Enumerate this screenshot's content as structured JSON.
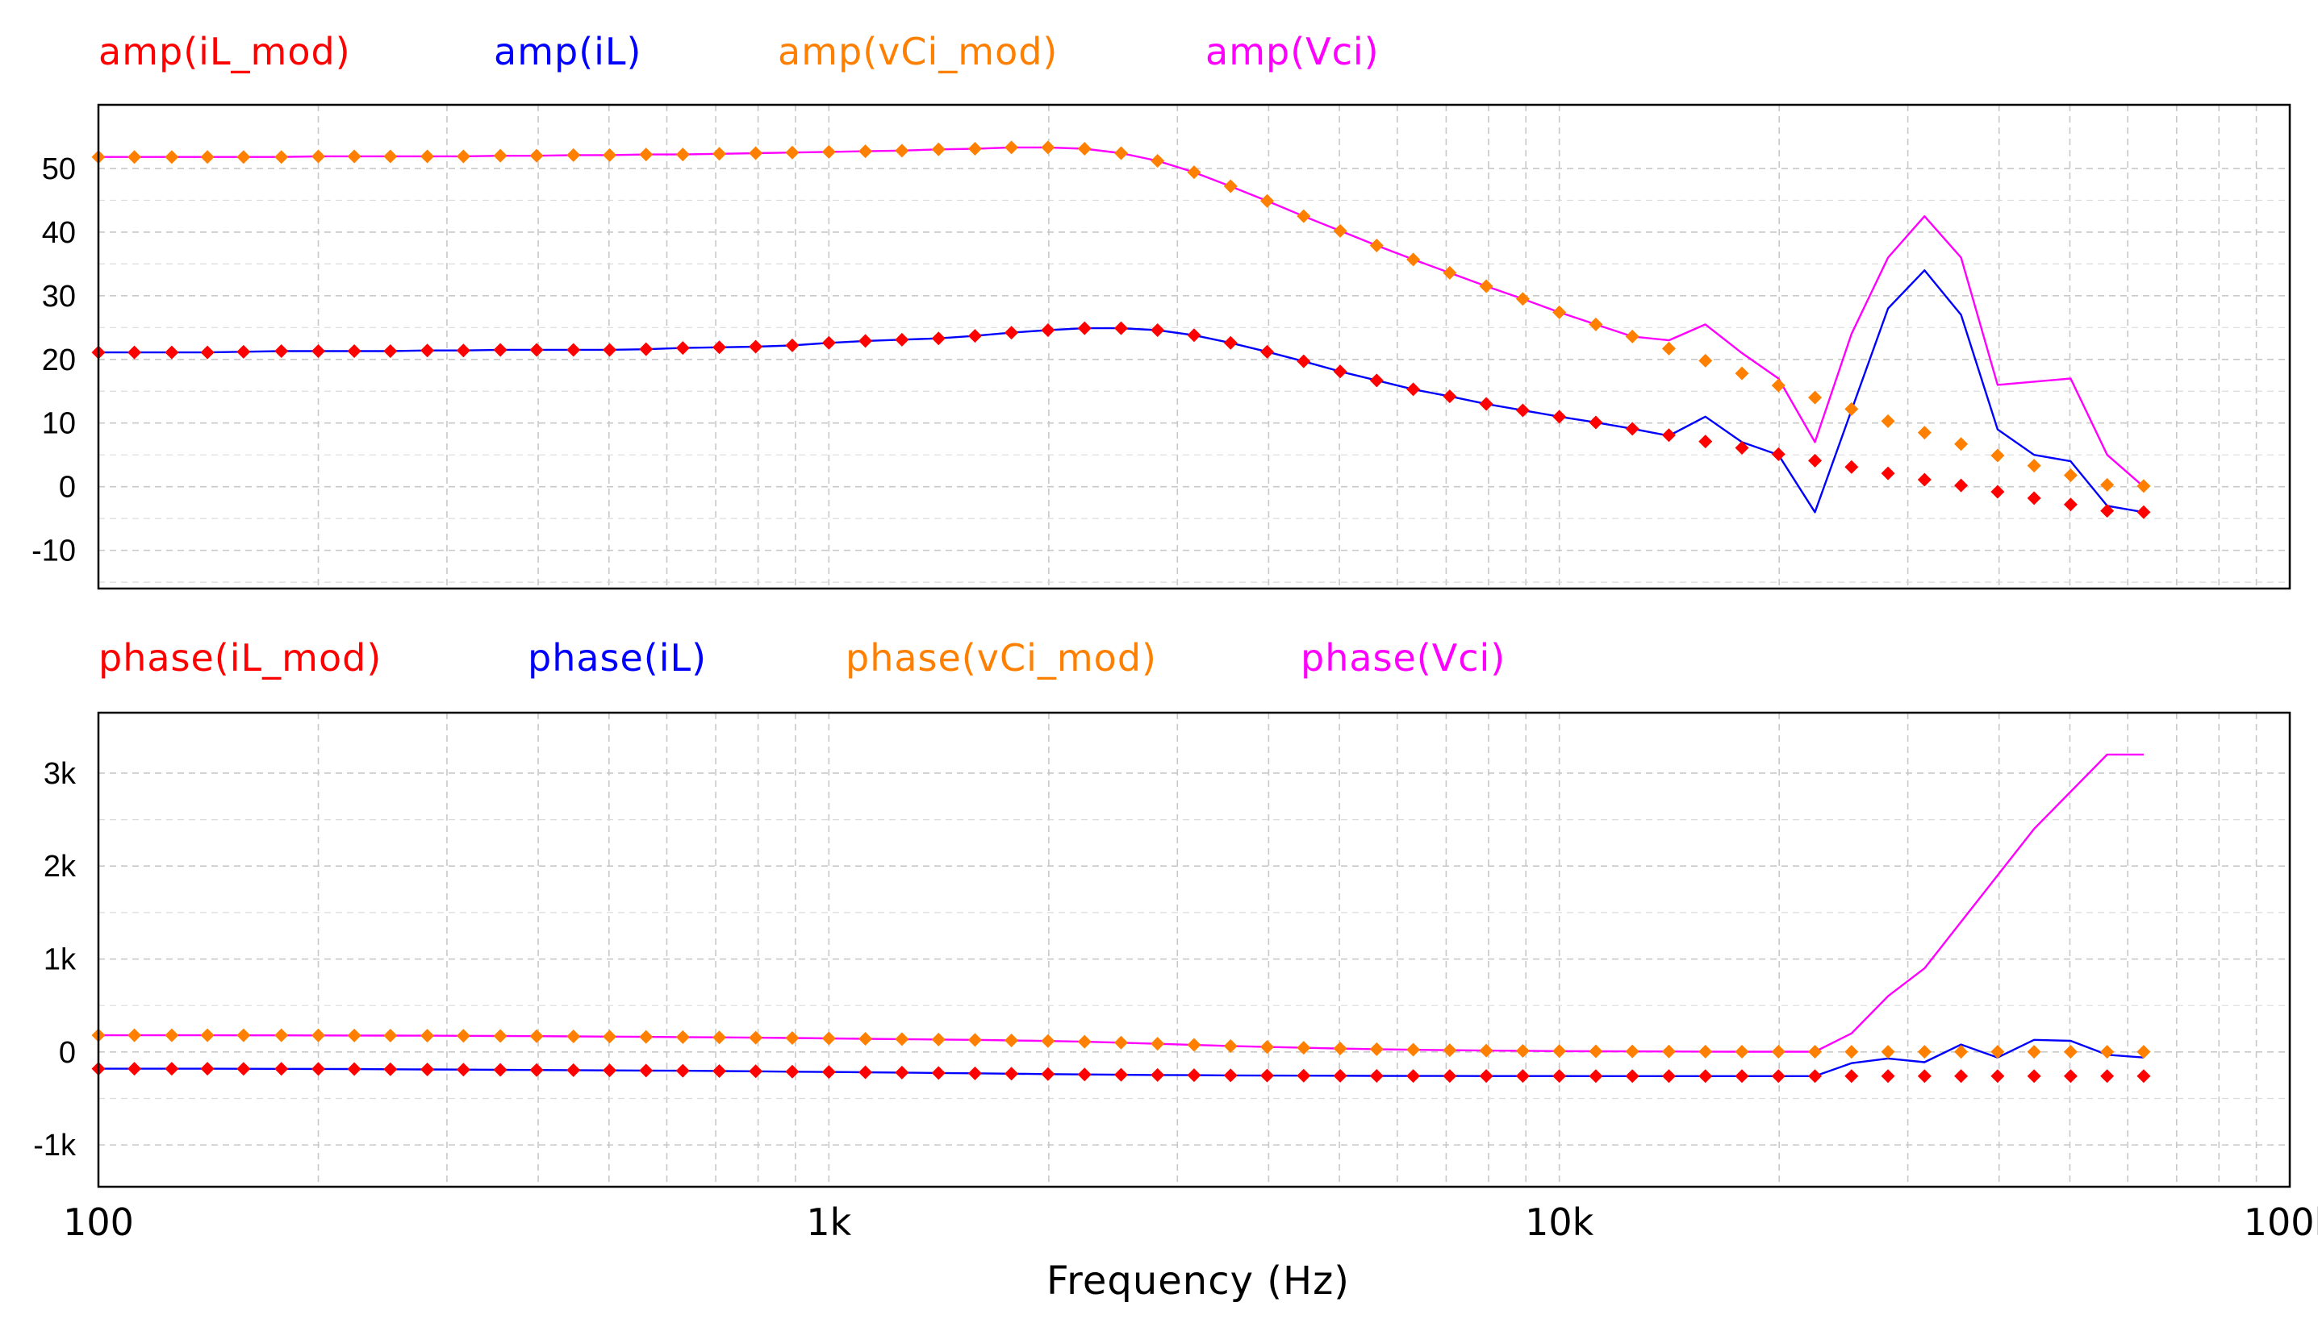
{
  "chart_data": [
    {
      "type": "line",
      "panel": "amplitude",
      "x_scale": "log",
      "xlim": [
        100,
        100000
      ],
      "ylim": [
        -16,
        60
      ],
      "grid": true,
      "y_ticks": [
        {
          "value": 50,
          "label": "50"
        },
        {
          "value": 40,
          "label": "40"
        },
        {
          "value": 30,
          "label": "30"
        },
        {
          "value": 20,
          "label": "20"
        },
        {
          "value": 10,
          "label": "10"
        },
        {
          "value": 0,
          "label": "0"
        },
        {
          "value": -10,
          "label": "-10"
        }
      ],
      "series": [
        {
          "name": "amp(iL_mod)",
          "color": "#ff0000",
          "style": "markers",
          "y_key": "iL_mod_amp",
          "x_key": "f_model"
        },
        {
          "name": "amp(iL)",
          "color": "#0000ff",
          "style": "line",
          "y_key": "iL_amp",
          "x_key": "f_sim"
        },
        {
          "name": "amp(vCi_mod)",
          "color": "#ff8000",
          "style": "markers",
          "y_key": "vCi_mod_amp",
          "x_key": "f_model"
        },
        {
          "name": "amp(Vci)",
          "color": "#ff00ff",
          "style": "line",
          "y_key": "Vci_amp",
          "x_key": "f_sim"
        }
      ]
    },
    {
      "type": "line",
      "panel": "phase",
      "x_scale": "log",
      "xlim": [
        100,
        100000
      ],
      "ylim": [
        -1450,
        3650
      ],
      "grid": true,
      "y_ticks": [
        {
          "value": 3000,
          "label": "3k"
        },
        {
          "value": 2000,
          "label": "2k"
        },
        {
          "value": 1000,
          "label": "1k"
        },
        {
          "value": 0,
          "label": "0"
        },
        {
          "value": -1000,
          "label": "-1k"
        }
      ],
      "xlabel": "Frequency (Hz)",
      "x_ticks": [
        {
          "value": 100,
          "label": "100"
        },
        {
          "value": 1000,
          "label": "1k"
        },
        {
          "value": 10000,
          "label": "10k"
        },
        {
          "value": 100000,
          "label": "100k"
        }
      ],
      "series": [
        {
          "name": "phase(iL_mod)",
          "color": "#ff0000",
          "style": "markers",
          "y_key": "iL_mod_ph",
          "x_key": "f_model"
        },
        {
          "name": "phase(iL)",
          "color": "#0000ff",
          "style": "line",
          "y_key": "iL_ph",
          "x_key": "f_sim"
        },
        {
          "name": "phase(vCi_mod)",
          "color": "#ff8000",
          "style": "markers",
          "y_key": "vCi_mod_ph",
          "x_key": "f_model"
        },
        {
          "name": "phase(Vci)",
          "color": "#ff00ff",
          "style": "line",
          "y_key": "Vci_ph",
          "x_key": "f_sim"
        }
      ]
    }
  ],
  "data": {
    "f_model": [
      100,
      112,
      126,
      141,
      158,
      178,
      200,
      224,
      251,
      282,
      316,
      355,
      398,
      447,
      501,
      562,
      631,
      708,
      794,
      891,
      1000,
      1122,
      1259,
      1413,
      1585,
      1778,
      1995,
      2239,
      2512,
      2818,
      3162,
      3548,
      3981,
      4467,
      5012,
      5623,
      6310,
      7079,
      7943,
      8913,
      10000,
      11220,
      12589,
      14125,
      15849,
      17783,
      19953,
      22387,
      25119,
      28184,
      31623,
      35481,
      39811,
      44668,
      50119,
      56234,
      63096
    ],
    "iL_mod_amp": [
      21.1,
      21.1,
      21.1,
      21.1,
      21.2,
      21.3,
      21.3,
      21.3,
      21.3,
      21.4,
      21.4,
      21.5,
      21.5,
      21.5,
      21.5,
      21.6,
      21.8,
      21.9,
      22.0,
      22.2,
      22.6,
      22.9,
      23.1,
      23.3,
      23.7,
      24.2,
      24.6,
      24.9,
      24.9,
      24.6,
      23.8,
      22.6,
      21.2,
      19.7,
      18.1,
      16.7,
      15.3,
      14.2,
      13.0,
      12.0,
      11.0,
      10.1,
      9.1,
      8.1,
      7.1,
      6.1,
      5.1,
      4.1,
      3.1,
      2.1,
      1.1,
      0.2,
      -0.8,
      -1.8,
      -2.8,
      -3.8,
      -4.0
    ],
    "vCi_mod_amp": [
      51.8,
      51.8,
      51.8,
      51.8,
      51.8,
      51.8,
      51.9,
      51.9,
      51.9,
      51.9,
      51.9,
      52.0,
      52.0,
      52.1,
      52.1,
      52.2,
      52.2,
      52.3,
      52.4,
      52.5,
      52.6,
      52.7,
      52.8,
      53.0,
      53.1,
      53.3,
      53.3,
      53.1,
      52.4,
      51.2,
      49.4,
      47.2,
      44.9,
      42.5,
      40.2,
      37.9,
      35.7,
      33.6,
      31.5,
      29.5,
      27.4,
      25.5,
      23.6,
      21.7,
      19.8,
      17.8,
      15.9,
      14.0,
      12.2,
      10.3,
      8.5,
      6.7,
      4.9,
      3.3,
      1.8,
      0.3,
      0.1
    ],
    "iL_mod_ph": [
      -180,
      -180,
      -180,
      -180,
      -181,
      -182,
      -183,
      -184,
      -186,
      -188,
      -190,
      -192,
      -194,
      -196,
      -198,
      -200,
      -202,
      -205,
      -208,
      -212,
      -215,
      -218,
      -222,
      -226,
      -230,
      -234,
      -238,
      -242,
      -245,
      -248,
      -250,
      -252,
      -254,
      -255,
      -256,
      -257,
      -258,
      -258,
      -259,
      -259,
      -259,
      -260,
      -260,
      -260,
      -260,
      -260,
      -260,
      -260,
      -260,
      -260,
      -260,
      -260,
      -260,
      -260,
      -260,
      -260,
      -260
    ],
    "vCi_mod_ph": [
      180,
      180,
      180,
      180,
      179,
      179,
      178,
      177,
      176,
      175,
      174,
      172,
      170,
      168,
      165,
      162,
      160,
      157,
      154,
      150,
      146,
      142,
      138,
      134,
      130,
      124,
      118,
      110,
      100,
      88,
      76,
      64,
      54,
      45,
      37,
      30,
      24,
      19,
      15,
      12,
      9,
      7,
      6,
      5,
      4,
      3,
      3,
      3,
      2,
      2,
      2,
      2,
      2,
      2,
      2,
      2,
      2
    ],
    "f_sim": [
      100,
      112,
      126,
      141,
      158,
      178,
      200,
      224,
      251,
      282,
      316,
      355,
      398,
      447,
      501,
      562,
      631,
      708,
      794,
      891,
      1000,
      1122,
      1259,
      1413,
      1585,
      1778,
      1995,
      2239,
      2512,
      2818,
      3162,
      3548,
      3981,
      4467,
      5012,
      5623,
      6310,
      7079,
      7943,
      8913,
      10000,
      11220,
      12589,
      14125,
      15849,
      17783,
      19953,
      22387,
      25119,
      28184,
      31623,
      35481,
      39811,
      44668,
      50119,
      56234,
      63096
    ],
    "iL_amp": [
      21.1,
      21.1,
      21.1,
      21.1,
      21.2,
      21.3,
      21.3,
      21.3,
      21.3,
      21.4,
      21.4,
      21.5,
      21.5,
      21.5,
      21.5,
      21.6,
      21.8,
      21.9,
      22.0,
      22.2,
      22.6,
      22.9,
      23.1,
      23.3,
      23.7,
      24.2,
      24.6,
      24.9,
      24.9,
      24.6,
      23.8,
      22.6,
      21.2,
      19.7,
      18.1,
      16.7,
      15.3,
      14.2,
      13.0,
      12.0,
      11.0,
      10.1,
      9.1,
      8.0,
      11.0,
      7.0,
      5.0,
      -4.0,
      12.0,
      28.0,
      34.0,
      27.0,
      9.0,
      5.0,
      4.0,
      -3.0,
      -4.0
    ],
    "Vci_amp": [
      51.8,
      51.8,
      51.8,
      51.8,
      51.8,
      51.8,
      51.9,
      51.9,
      51.9,
      51.9,
      51.9,
      52.0,
      52.0,
      52.1,
      52.1,
      52.2,
      52.2,
      52.3,
      52.4,
      52.5,
      52.6,
      52.7,
      52.8,
      53.0,
      53.1,
      53.3,
      53.3,
      53.1,
      52.4,
      51.2,
      49.4,
      47.2,
      44.9,
      42.5,
      40.2,
      37.9,
      35.7,
      33.6,
      31.5,
      29.5,
      27.4,
      25.5,
      23.6,
      23.0,
      25.5,
      21.0,
      17.0,
      7.0,
      24.0,
      36.0,
      42.5,
      36.0,
      16.0,
      16.5,
      17.0,
      5.0,
      0.0
    ],
    "iL_ph": [
      -180,
      -180,
      -180,
      -180,
      -181,
      -182,
      -183,
      -184,
      -186,
      -188,
      -190,
      -192,
      -194,
      -196,
      -198,
      -200,
      -202,
      -205,
      -208,
      -212,
      -215,
      -218,
      -222,
      -226,
      -230,
      -234,
      -238,
      -242,
      -245,
      -248,
      -250,
      -252,
      -254,
      -255,
      -256,
      -257,
      -258,
      -258,
      -259,
      -259,
      -259,
      -260,
      -260,
      -260,
      -260,
      -260,
      -260,
      -260,
      -120,
      -70,
      -110,
      80,
      -60,
      130,
      120,
      -30,
      -60
    ],
    "Vci_ph": [
      180,
      180,
      180,
      180,
      179,
      179,
      178,
      177,
      176,
      175,
      174,
      172,
      170,
      168,
      165,
      162,
      160,
      157,
      154,
      150,
      146,
      142,
      138,
      134,
      130,
      124,
      118,
      110,
      100,
      88,
      76,
      64,
      54,
      45,
      37,
      30,
      24,
      19,
      15,
      12,
      9,
      7,
      6,
      5,
      4,
      3,
      3,
      3,
      200,
      600,
      900,
      1400,
      1900,
      2400,
      2800,
      3200,
      3200
    ]
  }
}
